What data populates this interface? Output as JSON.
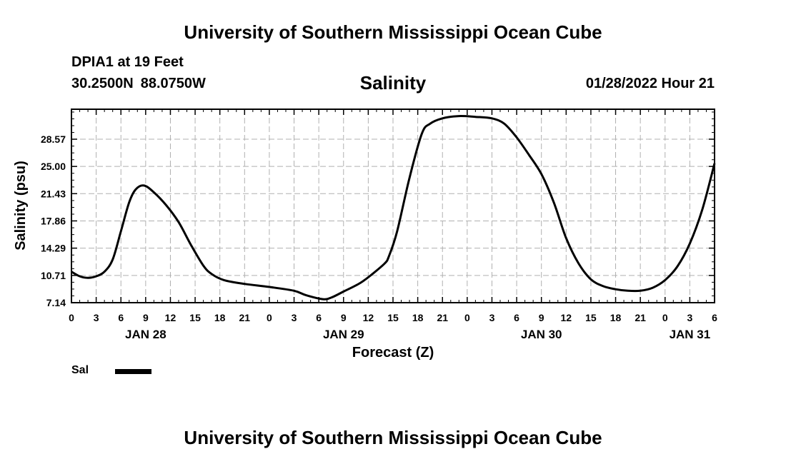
{
  "page": {
    "title_top": "University of Southern Mississippi Ocean Cube",
    "title_bottom": "University of Southern Mississippi Ocean Cube",
    "station": "DPIA1 at 19 Feet",
    "latitude": "30.2500N",
    "longitude": "88.0750W",
    "parameter": "Salinity",
    "datetime": "01/28/2022 Hour 21"
  },
  "legend": {
    "label": "Sal",
    "color": "#000000"
  },
  "chart_data": {
    "type": "line",
    "title": "Salinity",
    "xlabel": "Forecast (Z)",
    "ylabel": "Salinity (psu)",
    "grid": true,
    "xlim": [
      0,
      78
    ],
    "ylim": [
      7.14,
      32.5
    ],
    "yticks": [
      "7.14",
      "10.71",
      "14.29",
      "17.86",
      "21.43",
      "25.00",
      "28.57"
    ],
    "ytick_values": [
      7.14,
      10.71,
      14.29,
      17.86,
      21.43,
      25.0,
      28.57
    ],
    "xtick_labels": [
      "0",
      "3",
      "6",
      "9",
      "12",
      "15",
      "18",
      "21",
      "0",
      "3",
      "6",
      "9",
      "12",
      "15",
      "18",
      "21",
      "0",
      "3",
      "6",
      "9",
      "12",
      "15",
      "18",
      "21",
      "0",
      "3",
      "6"
    ],
    "day_labels": [
      {
        "label": "JAN 28",
        "hour": 9
      },
      {
        "label": "JAN 29",
        "hour": 33
      },
      {
        "label": "JAN 30",
        "hour": 57
      },
      {
        "label": "JAN 31",
        "hour": 75
      }
    ],
    "series": [
      {
        "name": "Sal",
        "color": "#000000",
        "x": [
          0,
          1,
          2,
          3,
          4,
          5,
          6,
          7,
          7.8,
          8.8,
          10,
          11.5,
          13,
          14.5,
          16,
          17,
          18.5,
          21,
          24,
          27,
          28.5,
          30.5,
          31.5,
          33,
          35,
          36.5,
          38,
          38.5,
          39.5,
          41,
          42.5,
          43.5,
          45,
          47,
          49,
          51,
          52.5,
          54,
          55.5,
          57,
          58.5,
          60,
          61.5,
          63,
          64.5,
          66,
          67.5,
          69,
          70.5,
          72,
          73.5,
          75,
          76.5,
          78
        ],
        "values": [
          11.2,
          10.6,
          10.4,
          10.6,
          11.2,
          12.8,
          16.5,
          20.3,
          22.0,
          22.5,
          21.6,
          19.9,
          17.7,
          14.7,
          12.0,
          10.9,
          10.1,
          9.6,
          9.2,
          8.7,
          8.1,
          7.6,
          7.8,
          8.6,
          9.7,
          10.9,
          12.3,
          13.2,
          16.5,
          23.5,
          29.3,
          30.6,
          31.3,
          31.6,
          31.5,
          31.3,
          30.6,
          28.8,
          26.5,
          24.0,
          20.3,
          15.6,
          12.3,
          10.2,
          9.3,
          8.9,
          8.7,
          8.7,
          9.1,
          10.1,
          11.9,
          14.9,
          19.3,
          25.4
        ]
      }
    ]
  }
}
